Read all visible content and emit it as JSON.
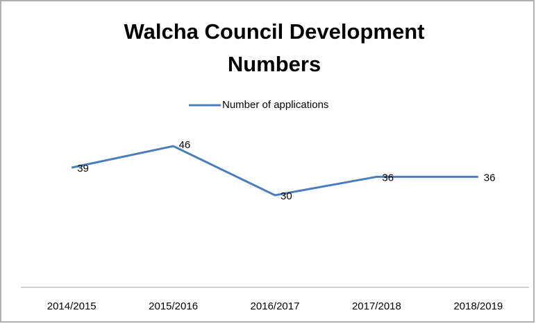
{
  "chart_data": {
    "type": "line",
    "title": "Walcha Council Development Numbers",
    "categories": [
      "2014/2015",
      "2015/2016",
      "2016/2017",
      "2017/2018",
      "2018/2019"
    ],
    "series": [
      {
        "name": "Number of applications",
        "color": "#4a7ebb",
        "values": [
          39,
          46,
          30,
          36,
          36
        ]
      }
    ],
    "ylim": [
      0,
      60
    ],
    "legend": "top"
  }
}
